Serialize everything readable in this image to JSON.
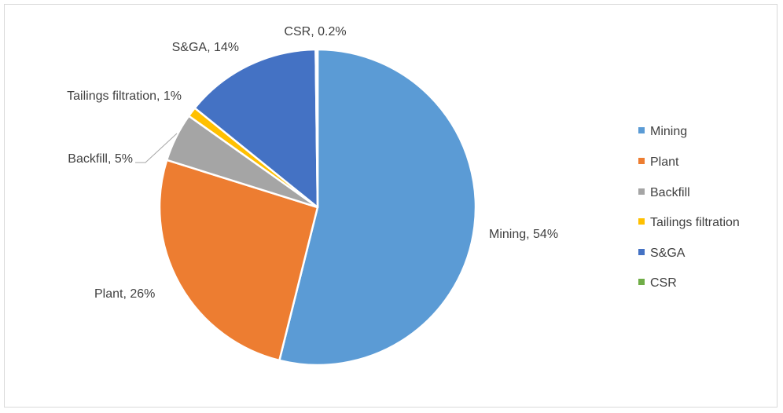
{
  "chart_data": {
    "type": "pie",
    "title": "",
    "start_angle_deg": 0,
    "direction": "clockwise",
    "categories": [
      "Mining",
      "Plant",
      "Backfill",
      "Tailings filtration",
      "S&GA",
      "CSR"
    ],
    "values": [
      54,
      26,
      5,
      1,
      14,
      0.2
    ],
    "data_labels": [
      "Mining, 54%",
      "Plant, 26%",
      "Backfill, 5%",
      "Tailings filtration, 1%",
      "S&GA, 14%",
      "CSR, 0.2%"
    ],
    "colors": [
      "#5b9bd5",
      "#ed7d31",
      "#a5a5a5",
      "#ffc000",
      "#4472c4",
      "#70ad47"
    ],
    "legend": {
      "position": "right",
      "entries": [
        "Mining",
        "Plant",
        "Backfill",
        "Tailings filtration",
        "S&GA",
        "CSR"
      ]
    }
  }
}
